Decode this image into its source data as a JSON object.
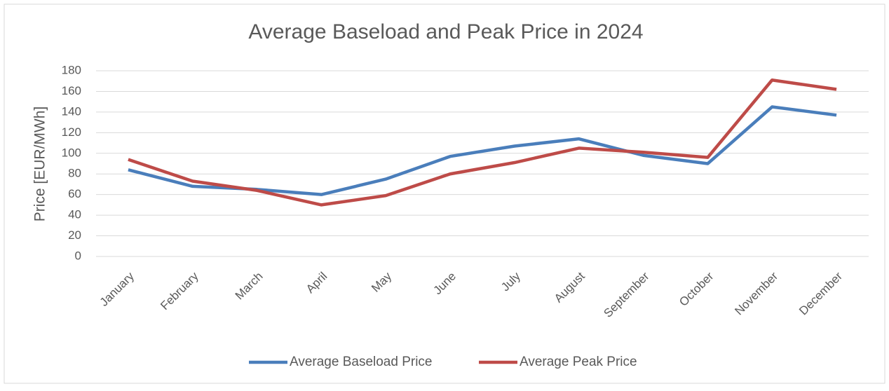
{
  "chart_data": {
    "type": "line",
    "title": "Average Baseload and Peak Price in 2024",
    "y_label": "Price [EUR/MWh]",
    "categories": [
      "January",
      "February",
      "March",
      "April",
      "May",
      "June",
      "July",
      "August",
      "September",
      "October",
      "November",
      "December"
    ],
    "series": [
      {
        "name": "Average Baseload Price",
        "color": "#4a7ebb",
        "values": [
          84,
          68,
          65,
          60,
          75,
          97,
          107,
          114,
          98,
          90,
          145,
          137
        ]
      },
      {
        "name": "Average Peak Price",
        "color": "#be4b48",
        "values": [
          94,
          73,
          64,
          50,
          59,
          80,
          91,
          105,
          101,
          96,
          171,
          162
        ]
      }
    ],
    "ylim": [
      0,
      180
    ],
    "yticks": [
      0,
      20,
      40,
      60,
      80,
      100,
      120,
      140,
      160,
      180
    ],
    "grid": true,
    "legend": "bottom"
  }
}
